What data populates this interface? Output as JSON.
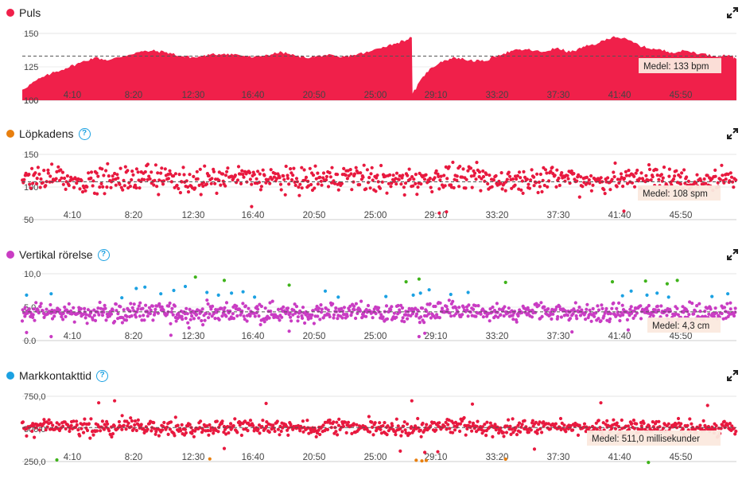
{
  "x_ticks": [
    "4:10",
    "8:20",
    "12:30",
    "16:40",
    "20:50",
    "25:00",
    "29:10",
    "33:20",
    "37:30",
    "41:40",
    "45:50"
  ],
  "colors": {
    "pulse": "#f0204a",
    "cadence_dot": "#e87f0e",
    "cadence_points": "#e8193f",
    "vertical": "#c93cc3",
    "contact": "#1ba1e2",
    "contact_points": "#e8193f",
    "green": "#3fb31a",
    "orange": "#e87f0e"
  },
  "icons": {
    "help": "?",
    "expand": "expand-icon"
  },
  "chart_data": [
    {
      "type": "area",
      "title": "Puls",
      "ylim": [
        100,
        150
      ],
      "y_ticks": [
        "150",
        "125",
        "100"
      ],
      "mean": 133,
      "mean_label": "Medel: 133 bpm",
      "x_unit": "minutes",
      "xlim": [
        0,
        49.5
      ],
      "series": [
        {
          "x": [
            0,
            1,
            2,
            3,
            4,
            5,
            6,
            7,
            8,
            9,
            10,
            11,
            12,
            13,
            14,
            15,
            16,
            17,
            18,
            19,
            20,
            21,
            22,
            23,
            24,
            25,
            26,
            27,
            27.05,
            28,
            29,
            30,
            31,
            32,
            33,
            34,
            35,
            36,
            37,
            38,
            39,
            40,
            41,
            42,
            43,
            44,
            45,
            46,
            47,
            48,
            49,
            49.5
          ],
          "values": [
            108,
            115,
            120,
            124,
            128,
            132,
            130,
            133,
            136,
            137,
            136,
            133,
            132,
            134,
            135,
            134,
            132,
            134,
            136,
            133,
            132,
            134,
            132,
            134,
            136,
            140,
            143,
            147,
            105,
            121,
            129,
            132,
            130,
            129,
            134,
            137,
            138,
            136,
            139,
            136,
            140,
            143,
            148,
            145,
            140,
            138,
            136,
            137,
            135,
            133,
            134,
            131
          ]
        }
      ]
    },
    {
      "type": "scatter",
      "title": "Löpkadens",
      "ylim": [
        50,
        150
      ],
      "y_ticks": [
        "150",
        "100",
        "50"
      ],
      "mean": 108,
      "mean_label": "Medel: 108 spm",
      "center": 112,
      "spread": 13,
      "outlier_low": [
        [
          28.9,
          60
        ],
        [
          29.4,
          62
        ],
        [
          41.7,
          63
        ],
        [
          15.9,
          70
        ]
      ],
      "count": 760
    },
    {
      "type": "scatter",
      "title": "Vertikal rörelse",
      "ylim": [
        0.0,
        10.0
      ],
      "y_ticks": [
        "10,0",
        "5,0",
        "0,0"
      ],
      "mean": 4.3,
      "mean_label": "Medel: 4,3 cm",
      "center": 4.2,
      "spread": 0.9,
      "count": 900,
      "blue_points": [
        [
          0.3,
          6.8
        ],
        [
          2.0,
          7.0
        ],
        [
          6.9,
          6.4
        ],
        [
          7.9,
          7.8
        ],
        [
          8.5,
          8.0
        ],
        [
          9.6,
          7.0
        ],
        [
          10.5,
          7.5
        ],
        [
          11.3,
          8.1
        ],
        [
          12.8,
          7.2
        ],
        [
          13.6,
          6.8
        ],
        [
          14.5,
          7.1
        ],
        [
          15.3,
          7.3
        ],
        [
          16.1,
          6.5
        ],
        [
          21.0,
          7.4
        ],
        [
          21.9,
          6.5
        ],
        [
          25.2,
          6.6
        ],
        [
          27.1,
          6.8
        ],
        [
          27.6,
          7.1
        ],
        [
          28.2,
          7.6
        ],
        [
          29.7,
          6.9
        ],
        [
          30.9,
          7.2
        ],
        [
          41.6,
          6.7
        ],
        [
          42.2,
          7.4
        ],
        [
          43.3,
          6.8
        ],
        [
          44.0,
          7.1
        ],
        [
          44.8,
          6.5
        ],
        [
          47.8,
          6.6
        ],
        [
          48.9,
          7.0
        ]
      ],
      "green_points": [
        [
          12.0,
          9.5
        ],
        [
          14.0,
          9.0
        ],
        [
          18.5,
          8.3
        ],
        [
          26.6,
          8.8
        ],
        [
          27.5,
          9.2
        ],
        [
          33.5,
          8.7
        ],
        [
          40.9,
          8.8
        ],
        [
          43.2,
          8.9
        ],
        [
          44.7,
          8.5
        ],
        [
          45.4,
          9.0
        ]
      ],
      "low_points": [
        [
          0.3,
          1.2
        ],
        [
          2.0,
          0.6
        ],
        [
          10.3,
          0.8
        ],
        [
          18.5,
          1.4
        ],
        [
          27.5,
          0.6
        ],
        [
          27.9,
          1.1
        ],
        [
          38.1,
          1.3
        ],
        [
          42.0,
          1.6
        ]
      ]
    },
    {
      "type": "scatter",
      "title": "Markkontakttid",
      "ylim": [
        250,
        750
      ],
      "y_ticks": [
        "750,0",
        "500,0",
        "250,0"
      ],
      "mean": 511.0,
      "mean_label": "Medel: 511,0 millisekunder",
      "center": 511,
      "spread": 38,
      "count": 820,
      "orange_points": [
        [
          13.0,
          270
        ],
        [
          27.3,
          260
        ],
        [
          27.7,
          255
        ],
        [
          28.0,
          258
        ],
        [
          33.5,
          268
        ]
      ],
      "green_points": [
        [
          2.4,
          262
        ],
        [
          43.4,
          243
        ]
      ],
      "high_points": [
        [
          5.3,
          700
        ],
        [
          6.4,
          715
        ],
        [
          16.9,
          695
        ],
        [
          27.0,
          715
        ],
        [
          31.2,
          690
        ],
        [
          40.1,
          700
        ],
        [
          47.5,
          680
        ]
      ],
      "low_points": [
        [
          26.2,
          330
        ],
        [
          27.9,
          320
        ],
        [
          28.8,
          325
        ],
        [
          14.0,
          350
        ],
        [
          35.5,
          345
        ]
      ]
    }
  ]
}
